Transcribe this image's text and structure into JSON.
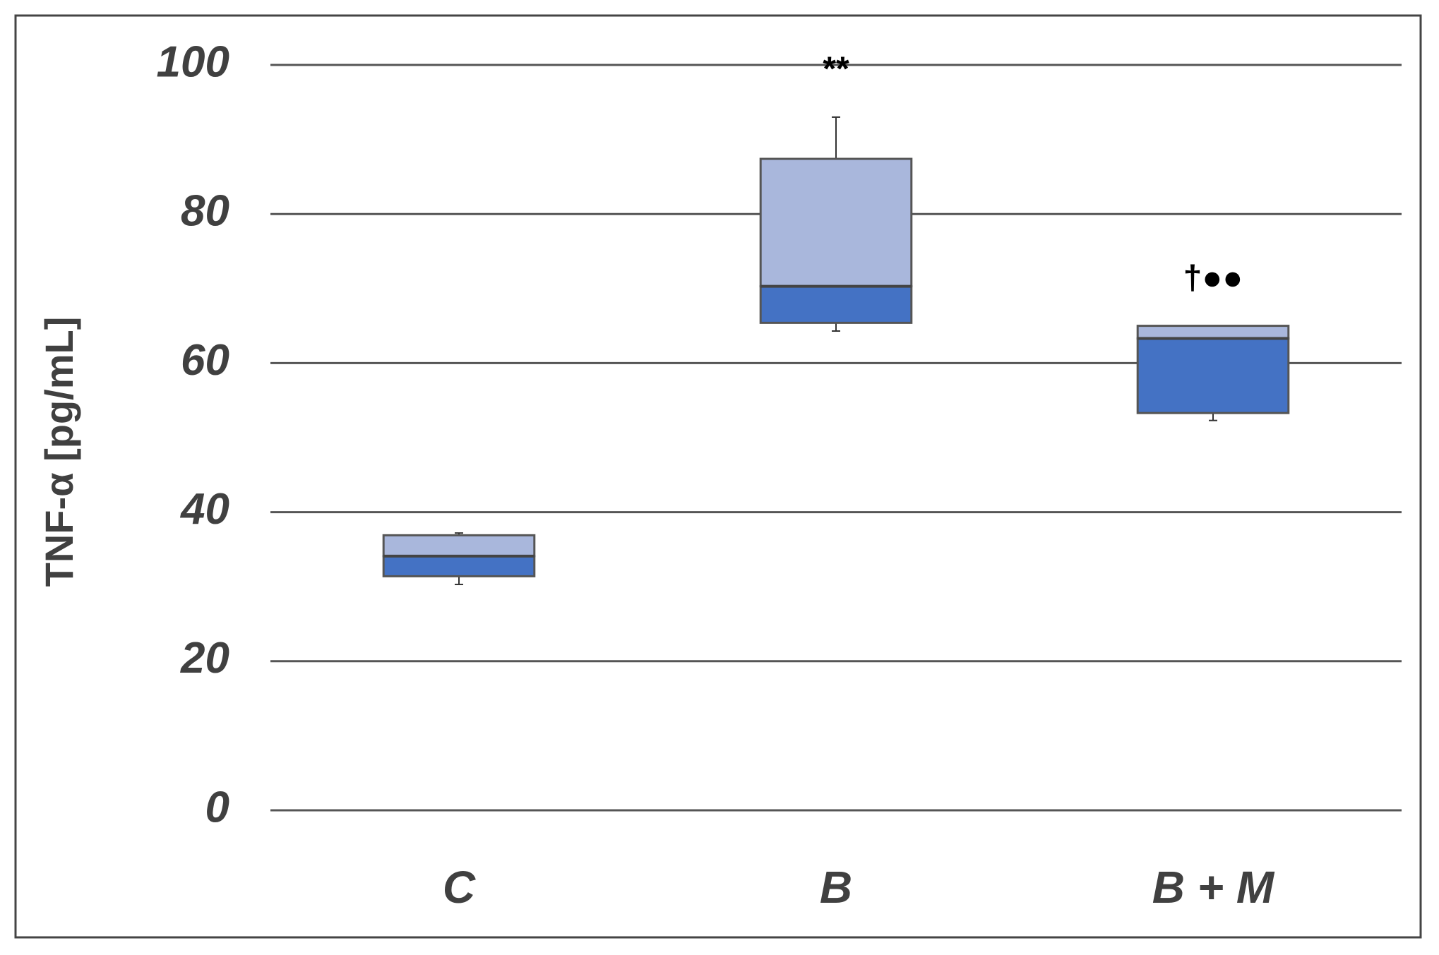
{
  "chart_data": {
    "type": "box",
    "y_label": "TNF-α [pg/mL]",
    "categories": [
      "C",
      "B",
      "B + M"
    ],
    "min": [
      30.3,
      64.3,
      52.3
    ],
    "q1": [
      31.4,
      65.4,
      53.3
    ],
    "median": [
      34.1,
      70.3,
      63.3
    ],
    "q3": [
      36.9,
      87.4,
      65.0
    ],
    "max": [
      37.2,
      93.0,
      65.0
    ],
    "annotations": [
      null,
      "**",
      "†●●"
    ],
    "upper_color": "#a9b7dc",
    "lower_color": "#4472c4",
    "ylim": [
      0,
      100
    ],
    "yticks": [
      0,
      20,
      40,
      60,
      80,
      100
    ],
    "grid": true
  }
}
